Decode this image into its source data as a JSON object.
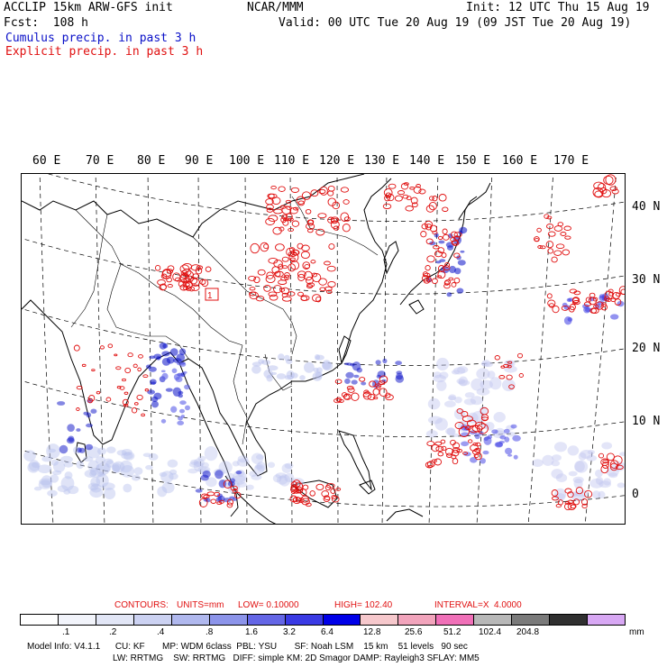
{
  "header": {
    "model": "ACCLIP 15km ARW-GFS init",
    "forecast": "Fcst:  108 h",
    "center": "NCAR/MMM",
    "init": "Init: 12 UTC Thu 15 Aug 19",
    "valid": "Valid: 00 UTC Tue 20 Aug 19 (09 JST Tue 20 Aug 19)",
    "field_cumulus": "Cumulus precip. in past 3 h",
    "field_explicit": "Explicit precip. in past 3 h",
    "cumulus_color": "#0a10c8",
    "explicit_color": "#e01010"
  },
  "map": {
    "lon_labels": [
      "60 E",
      "70 E",
      "80 E",
      "90 E",
      "100 E",
      "110 E",
      "120 E",
      "130 E",
      "140 E",
      "150 E",
      "160 E",
      "170 E"
    ],
    "lat_labels": [
      "40 N",
      "30 N",
      "20 N",
      "10 N",
      "0"
    ],
    "box_label": "1"
  },
  "contours": {
    "label": "CONTOURS:",
    "units": "UNITS=mm",
    "low": "LOW= 0.10000",
    "high": "HIGH= 102.40",
    "interval": "INTERVAL=X  4.0000",
    "color": "#e01010"
  },
  "colorbar": {
    "colors": [
      "#ffffff",
      "#f2f4fb",
      "#e2e6f6",
      "#ccd2f2",
      "#b0b8ee",
      "#8c94ea",
      "#6466e6",
      "#3a3ae4",
      "#0000e8",
      "#f6c8cc",
      "#f2a4bc",
      "#f070b8",
      "#b8b8b8",
      "#7a7a7a",
      "#303030",
      "#d8a8f4"
    ],
    "labels": [
      ".1",
      ".2",
      ".4",
      ".8",
      "1.6",
      "3.2",
      "6.4",
      "12.8",
      "25.6",
      "51.2",
      "102.4",
      "204.8"
    ],
    "units": "mm"
  },
  "footer": {
    "line1": "Model Info: V4.1.1      CU: KF       MP: WDM 6class  PBL: YSU       SF: Noah LSM    15 km    51 levels   90 sec",
    "line2": "LW: RRTMG    SW: RRTMG   DIFF: simple KM: 2D Smagor DAMP: Rayleigh3 SFLAY: MM5"
  }
}
